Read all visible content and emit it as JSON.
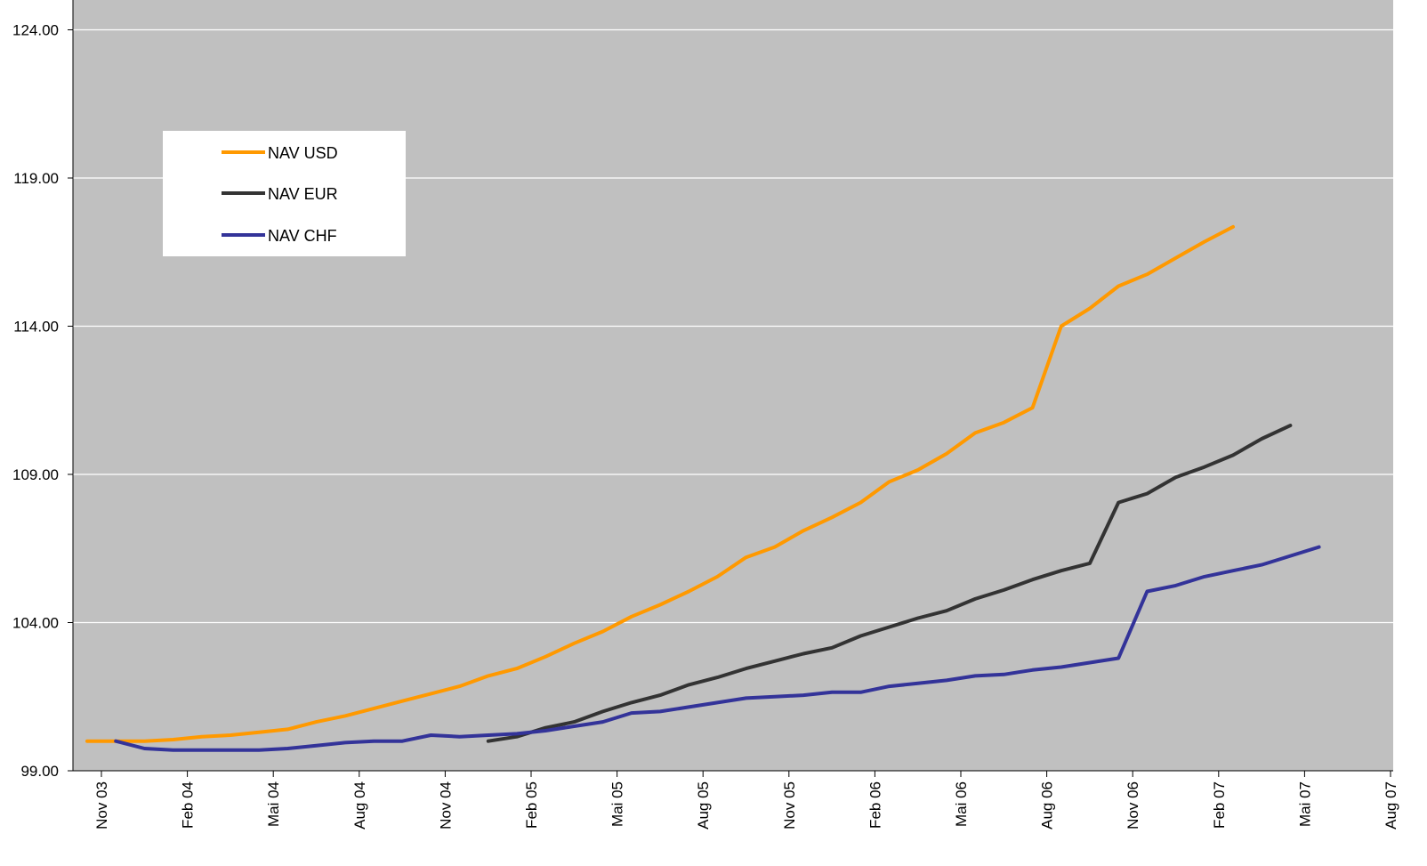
{
  "chart_data": {
    "type": "line",
    "title": "",
    "xlabel": "",
    "ylabel": "",
    "ylim": [
      99,
      124
    ],
    "yticks": [
      "99.00",
      "104.00",
      "109.00",
      "114.00",
      "119.00",
      "124.00"
    ],
    "xticks": [
      "Nov 03",
      "Feb 04",
      "Mai 04",
      "Aug 04",
      "Nov 04",
      "Feb 05",
      "Mai 05",
      "Aug 05",
      "Nov 05",
      "Feb 06",
      "Mai 06",
      "Aug 06",
      "Nov 06",
      "Feb 07",
      "Mai 07",
      "Aug 07"
    ],
    "grid": "horizontal",
    "legend_position": "top-left",
    "x_month_start": "2003-11",
    "series": [
      {
        "name": "NAV USD",
        "color": "#FF9900",
        "start": 0,
        "values": [
          100.0,
          100.0,
          100.0,
          100.05,
          100.15,
          100.2,
          100.3,
          100.4,
          100.65,
          100.85,
          101.1,
          101.35,
          101.6,
          101.85,
          102.2,
          102.45,
          102.85,
          103.3,
          103.7,
          104.2,
          104.6,
          105.05,
          105.55,
          106.2,
          106.55,
          107.1,
          107.55,
          108.05,
          108.75,
          109.15,
          109.7,
          110.4,
          110.75,
          111.25,
          114.0,
          114.6,
          115.35,
          115.75,
          116.3,
          116.85,
          117.35
        ]
      },
      {
        "name": "NAV EUR",
        "color": "#333333",
        "start": 14,
        "values": [
          100.0,
          100.15,
          100.45,
          100.65,
          101.0,
          101.3,
          101.55,
          101.9,
          102.15,
          102.45,
          102.7,
          102.95,
          103.15,
          103.55,
          103.85,
          104.15,
          104.4,
          104.8,
          105.1,
          105.45,
          105.75,
          106.0,
          108.05,
          108.35,
          108.9,
          109.25,
          109.65,
          110.2,
          110.65
        ]
      },
      {
        "name": "NAV CHF",
        "color": "#333399",
        "start": 1,
        "values": [
          100.0,
          99.75,
          99.7,
          99.7,
          99.7,
          99.7,
          99.75,
          99.85,
          99.95,
          100.0,
          100.0,
          100.2,
          100.15,
          100.2,
          100.25,
          100.35,
          100.5,
          100.65,
          100.95,
          101.0,
          101.15,
          101.3,
          101.45,
          101.5,
          101.55,
          101.65,
          101.65,
          101.85,
          101.95,
          102.05,
          102.2,
          102.25,
          102.4,
          102.5,
          102.65,
          102.8,
          105.05,
          105.25,
          105.55,
          105.75,
          105.95,
          106.25,
          106.55
        ]
      }
    ]
  }
}
